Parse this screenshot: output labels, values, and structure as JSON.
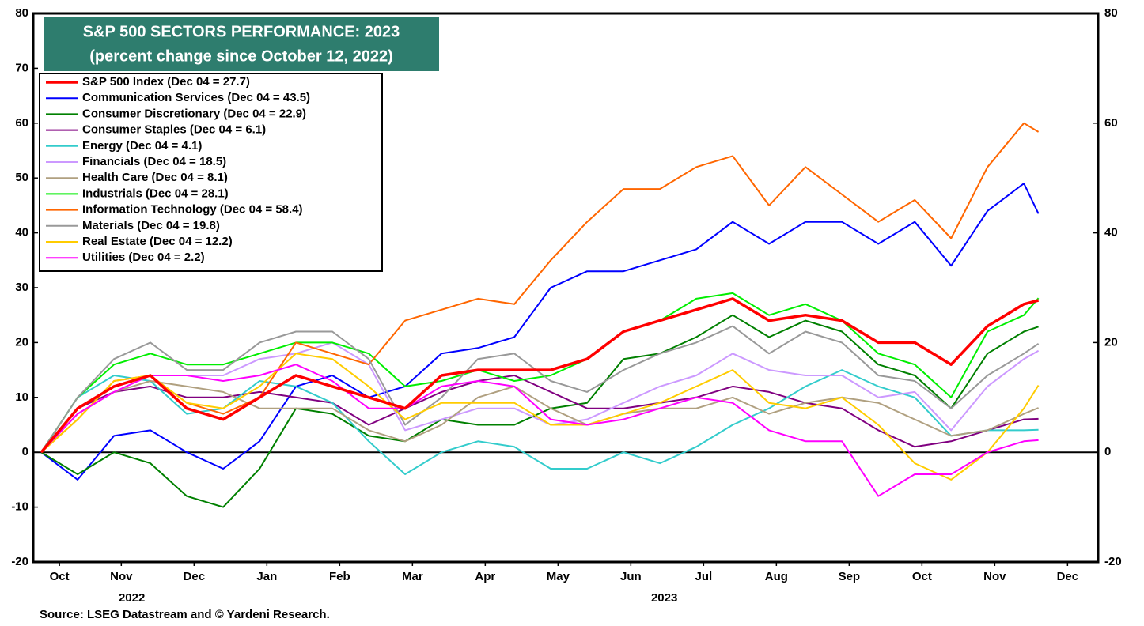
{
  "chart_data": {
    "type": "line",
    "title": "S&P 500 SECTORS PERFORMANCE: 2023",
    "subtitle": "(percent change since October 12, 2022)",
    "source": "Source: LSEG Datastream and © Yardeni Research.",
    "x": [
      0.4,
      0.9,
      1.4,
      1.9,
      2.4,
      2.9,
      3.4,
      3.9,
      4.4,
      4.9,
      5.4,
      5.9,
      6.4,
      6.9,
      7.4,
      7.9,
      8.4,
      8.9,
      9.4,
      9.9,
      10.4,
      10.9,
      11.4,
      11.9,
      12.4,
      12.9,
      13.4,
      13.9,
      14.1
    ],
    "xlim": [
      0.29,
      14.92
    ],
    "xticks": [
      {
        "value": 0.65,
        "label": "Oct"
      },
      {
        "value": 1.5,
        "label": "Nov"
      },
      {
        "value": 2.5,
        "label": "Dec"
      },
      {
        "value": 3.5,
        "label": "Jan"
      },
      {
        "value": 4.5,
        "label": "Feb"
      },
      {
        "value": 5.5,
        "label": "Mar"
      },
      {
        "value": 6.5,
        "label": "Apr"
      },
      {
        "value": 7.5,
        "label": "May"
      },
      {
        "value": 8.5,
        "label": "Jun"
      },
      {
        "value": 9.5,
        "label": "Jul"
      },
      {
        "value": 10.5,
        "label": "Aug"
      },
      {
        "value": 11.5,
        "label": "Sep"
      },
      {
        "value": 12.5,
        "label": "Oct"
      },
      {
        "value": 13.5,
        "label": "Nov"
      },
      {
        "value": 14.5,
        "label": "Dec"
      }
    ],
    "x_groups": [
      {
        "label": "2022",
        "start": 0.29
      },
      {
        "label": "2023",
        "start": 3
      }
    ],
    "ylim": [
      -20,
      80
    ],
    "yticks": [
      -20,
      -10,
      0,
      10,
      20,
      30,
      40,
      50,
      60,
      70,
      80
    ],
    "y2lim": [
      -20,
      80
    ],
    "y2ticks": [
      -20,
      0,
      20,
      40,
      60,
      80
    ],
    "series": [
      {
        "name": "S&P 500 Index (Dec 04 = 27.7)",
        "color": "#ff0000",
        "values": [
          0,
          8,
          12,
          14,
          8,
          6,
          10,
          14,
          12,
          10,
          8,
          14,
          15,
          15,
          15,
          17,
          22,
          24,
          26,
          28,
          24,
          25,
          24,
          20,
          20,
          16,
          23,
          27,
          27.7
        ]
      },
      {
        "name": "Communication Services (Dec 04 = 43.5)",
        "color": "#0000ff",
        "values": [
          0,
          -5,
          3,
          4,
          0,
          -3,
          2,
          12,
          14,
          10,
          12,
          18,
          19,
          21,
          30,
          33,
          33,
          35,
          37,
          42,
          38,
          42,
          42,
          38,
          42,
          34,
          44,
          49,
          43.5
        ]
      },
      {
        "name": "Consumer Discretionary (Dec 04 = 22.9)",
        "color": "#008000",
        "values": [
          0,
          -4,
          0,
          -2,
          -8,
          -10,
          -3,
          8,
          7,
          3,
          2,
          6,
          5,
          5,
          8,
          9,
          17,
          18,
          21,
          25,
          21,
          24,
          22,
          16,
          14,
          8,
          18,
          22,
          22.9
        ]
      },
      {
        "name": "Consumer Staples (Dec 04 = 6.1)",
        "color": "#800080",
        "values": [
          0,
          8,
          11,
          12,
          10,
          10,
          11,
          10,
          9,
          5,
          8,
          11,
          13,
          14,
          11,
          8,
          8,
          9,
          10,
          12,
          11,
          9,
          8,
          4,
          1,
          2,
          4,
          6,
          6.1
        ]
      },
      {
        "name": "Energy (Dec 04 = 4.1)",
        "color": "#33cccc",
        "values": [
          0,
          10,
          14,
          13,
          7,
          8,
          13,
          12,
          9,
          2,
          -4,
          0,
          2,
          1,
          -3,
          -3,
          0,
          -2,
          1,
          5,
          8,
          12,
          15,
          12,
          10,
          3,
          4,
          4,
          4.1
        ]
      },
      {
        "name": "Financials (Dec 04 = 18.5)",
        "color": "#cc99ff",
        "values": [
          0,
          8,
          12,
          14,
          14,
          14,
          17,
          18,
          20,
          16,
          4,
          6,
          8,
          8,
          5,
          6,
          9,
          12,
          14,
          18,
          15,
          14,
          14,
          10,
          11,
          4,
          12,
          17,
          18.5
        ]
      },
      {
        "name": "Health Care (Dec 04 = 8.1)",
        "color": "#b0a080",
        "values": [
          0,
          7,
          11,
          13,
          12,
          11,
          8,
          8,
          8,
          4,
          2,
          5,
          10,
          12,
          8,
          5,
          7,
          8,
          8,
          10,
          7,
          9,
          10,
          9,
          6,
          3,
          4,
          7,
          8.1
        ]
      },
      {
        "name": "Industrials (Dec 04 = 28.1)",
        "color": "#00ee00",
        "values": [
          0,
          10,
          16,
          18,
          16,
          16,
          18,
          20,
          20,
          18,
          12,
          13,
          15,
          13,
          14,
          17,
          22,
          24,
          28,
          29,
          25,
          27,
          24,
          18,
          16,
          10,
          22,
          25,
          28.1
        ]
      },
      {
        "name": "Information Technology (Dec 04 = 58.4)",
        "color": "#ff6600",
        "values": [
          0,
          6,
          13,
          14,
          9,
          7,
          10,
          20,
          18,
          16,
          24,
          26,
          28,
          27,
          35,
          42,
          48,
          48,
          52,
          54,
          45,
          52,
          47,
          42,
          46,
          39,
          52,
          60,
          58.4
        ]
      },
      {
        "name": "Materials (Dec 04 = 19.8)",
        "color": "#999999",
        "values": [
          0,
          10,
          17,
          20,
          15,
          15,
          20,
          22,
          22,
          17,
          5,
          10,
          17,
          18,
          13,
          11,
          15,
          18,
          20,
          23,
          18,
          22,
          20,
          14,
          13,
          8,
          14,
          18,
          19.8
        ]
      },
      {
        "name": "Real Estate (Dec 04 = 12.2)",
        "color": "#ffcc00",
        "values": [
          0,
          6,
          13,
          14,
          9,
          8,
          12,
          18,
          17,
          12,
          6,
          9,
          9,
          9,
          5,
          5,
          7,
          9,
          12,
          15,
          9,
          8,
          10,
          5,
          -2,
          -5,
          0,
          8,
          12.2
        ]
      },
      {
        "name": "Utilities (Dec 04 = 2.2)",
        "color": "#ff00ff",
        "values": [
          0,
          7,
          11,
          14,
          14,
          13,
          14,
          16,
          13,
          8,
          8,
          12,
          13,
          12,
          6,
          5,
          6,
          8,
          10,
          9,
          4,
          2,
          2,
          -8,
          -4,
          -4,
          0,
          2,
          2.2
        ]
      }
    ]
  }
}
